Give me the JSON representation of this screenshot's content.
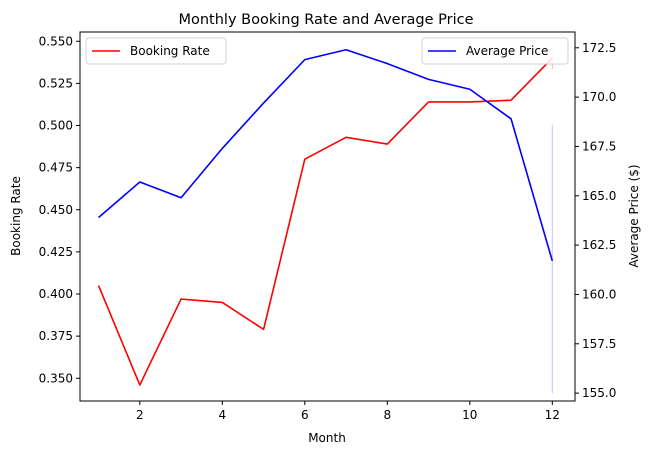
{
  "chart_data": {
    "type": "line",
    "title": "Monthly Booking Rate and Average Price",
    "xlabel": "Month",
    "ylabel_left": "Booking Rate",
    "ylabel_right": "Average Price ($)",
    "x": [
      1,
      2,
      3,
      4,
      5,
      6,
      7,
      8,
      9,
      10,
      11,
      12
    ],
    "xlim": [
      0.55,
      12.55
    ],
    "ylim_left": [
      0.3365,
      0.5555
    ],
    "ylim_right": [
      154.6,
      173.3
    ],
    "x_ticks": [
      2,
      4,
      6,
      8,
      10,
      12
    ],
    "y_ticks_left": [
      0.35,
      0.375,
      0.4,
      0.425,
      0.45,
      0.475,
      0.5,
      0.525,
      0.55
    ],
    "y_ticks_right": [
      155.0,
      157.5,
      160.0,
      162.5,
      165.0,
      167.5,
      170.0,
      172.5
    ],
    "x_tick_labels": [
      "2",
      "4",
      "6",
      "8",
      "10",
      "12"
    ],
    "y_tick_labels_left": [
      "0.350",
      "0.375",
      "0.400",
      "0.425",
      "0.450",
      "0.475",
      "0.500",
      "0.525",
      "0.550"
    ],
    "y_tick_labels_right": [
      "155.0",
      "157.5",
      "160.0",
      "162.5",
      "165.0",
      "167.5",
      "170.0",
      "172.5"
    ],
    "grid": false,
    "series": [
      {
        "name": "Booking Rate",
        "axis": "left",
        "color": "#ff0000",
        "legend": "top-left",
        "values": [
          0.405,
          0.346,
          0.397,
          0.395,
          0.379,
          0.48,
          0.493,
          0.489,
          0.514,
          0.514,
          0.515,
          0.54
        ]
      },
      {
        "name": "Average Price",
        "axis": "right",
        "color": "#0000ff",
        "legend": "top-right",
        "values": [
          163.9,
          165.7,
          164.9,
          167.4,
          169.7,
          171.9,
          172.4,
          171.7,
          170.9,
          170.4,
          168.9,
          161.7
        ]
      }
    ],
    "faint_marks": [
      {
        "x": 12,
        "axis": "left",
        "from": 0.5335,
        "to": 0.545,
        "color": "#ffb0b0"
      },
      {
        "x": 12,
        "axis": "right",
        "from": 155.0,
        "to": 168.6,
        "color": "#c8c8ff"
      }
    ]
  }
}
